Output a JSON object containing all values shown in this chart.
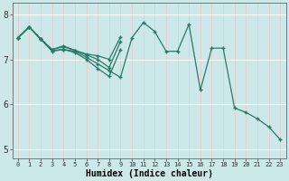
{
  "xlabel": "Humidex (Indice chaleur)",
  "ylabel": "",
  "background_color": "#cce8e8",
  "grid_color": "#ffffff",
  "line_color": "#2a7a6a",
  "xlim": [
    -0.5,
    23.5
  ],
  "ylim": [
    4.8,
    8.25
  ],
  "yticks": [
    5,
    6,
    7,
    8
  ],
  "xticks": [
    0,
    1,
    2,
    3,
    4,
    5,
    6,
    7,
    8,
    9,
    10,
    11,
    12,
    13,
    14,
    15,
    16,
    17,
    18,
    19,
    20,
    21,
    22,
    23
  ],
  "series": [
    {
      "x": [
        0,
        1,
        2,
        3,
        4,
        5,
        6,
        7,
        8,
        9,
        10,
        11,
        12,
        13,
        14,
        15,
        16,
        17,
        18,
        19,
        20,
        21,
        22,
        23
      ],
      "y": [
        7.48,
        7.72,
        7.45,
        7.2,
        7.22,
        7.18,
        7.05,
        6.9,
        6.75,
        6.6,
        7.48,
        7.82,
        7.62,
        7.18,
        7.18,
        7.78,
        6.32,
        7.25,
        7.25,
        5.92,
        5.82,
        5.68,
        5.5,
        5.22
      ]
    },
    {
      "x": [
        0,
        1,
        2,
        3,
        4,
        5,
        6,
        7,
        8,
        9
      ],
      "y": [
        7.48,
        7.72,
        7.45,
        7.22,
        7.3,
        7.2,
        7.12,
        7.08,
        7.0,
        7.5
      ]
    },
    {
      "x": [
        0,
        1,
        2,
        3,
        4,
        5,
        6,
        7,
        8,
        9
      ],
      "y": [
        7.48,
        7.72,
        7.45,
        7.22,
        7.28,
        7.2,
        7.1,
        7.0,
        6.82,
        7.4
      ]
    },
    {
      "x": [
        0,
        1,
        2,
        3,
        4,
        5,
        6,
        7,
        8,
        9
      ],
      "y": [
        7.48,
        7.72,
        7.45,
        7.18,
        7.22,
        7.15,
        7.0,
        6.8,
        6.62,
        7.22
      ]
    }
  ]
}
